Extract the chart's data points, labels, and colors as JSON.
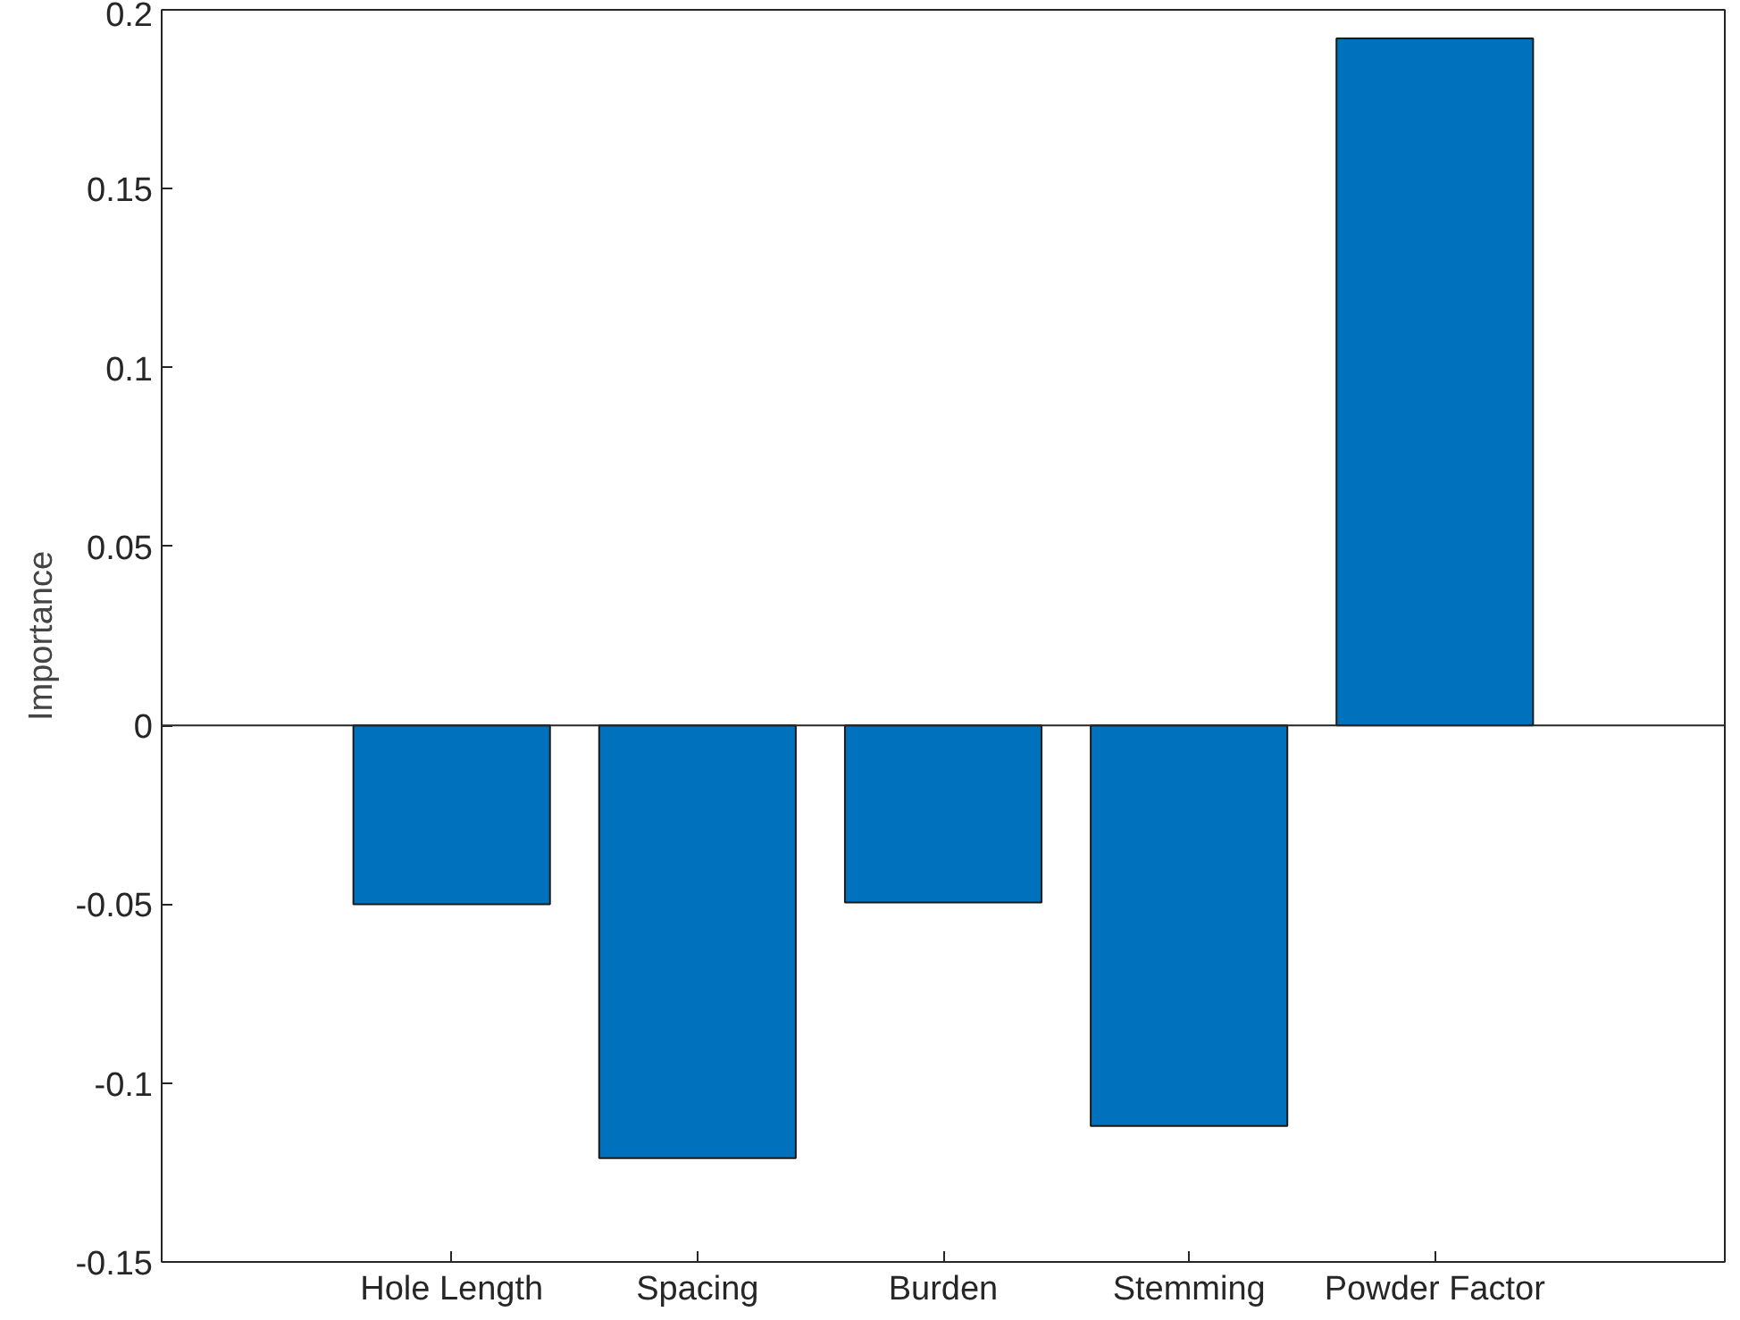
{
  "chart_data": {
    "type": "bar",
    "ylabel": "Importance",
    "categories": [
      "Hole Length",
      "Spacing",
      "Burden",
      "Stemming",
      "Powder Factor"
    ],
    "values": [
      -0.05,
      -0.121,
      -0.0495,
      -0.112,
      0.192
    ],
    "color": "#0072bd",
    "ylim": [
      -0.15,
      0.2
    ],
    "yticks": [
      -0.15,
      -0.1,
      -0.05,
      0,
      0.05,
      0.1,
      0.15,
      0.2
    ]
  }
}
